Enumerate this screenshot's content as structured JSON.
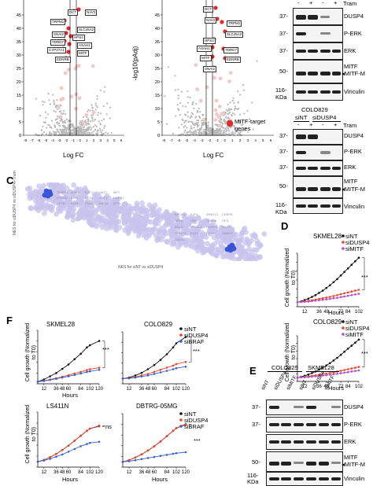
{
  "volcano": {
    "ylabel": "-log10(pAdj)",
    "xlabel": "Log FC",
    "yticks": [
      "0",
      "5",
      "10",
      "15",
      "20",
      "25",
      "30",
      "35",
      "40",
      "45"
    ],
    "xticks": [
      "-8",
      "-7",
      "-6",
      "-5",
      "-4",
      "-3",
      "-2",
      "-1",
      "0",
      "1",
      "2",
      "3",
      "4",
      "5",
      "6"
    ],
    "legend": "MITF-target genes",
    "left_genes": [
      "DCT",
      "NAV2",
      "TRPM1",
      "SLC45A2",
      "SNAI2",
      "HPS4",
      "TDRD7",
      "ASAH1",
      "CYP27A1",
      "MITF",
      "EDNRB"
    ],
    "right_genes": [
      "DCT",
      "NAV2",
      "TRPM1",
      "SLC45A2",
      "HPS4",
      "ASAH1",
      "TDRD7",
      "MITF",
      "EDNRB",
      "SNAI2"
    ]
  },
  "blot_top": {
    "treatment": "Tram",
    "signs": [
      "-",
      "+",
      "-",
      "+"
    ],
    "rows": [
      {
        "mw": "37-",
        "label": "DUSP4"
      },
      {
        "mw": "37-",
        "label": "P-ERK"
      },
      {
        "mw": "37-",
        "label": "ERK"
      },
      {
        "mw": "50-",
        "label": "MITF"
      },
      {
        "mw": "116-",
        "label": "Vinculin"
      }
    ],
    "mitf_m": "◂MITF-M",
    "kda": "KDa"
  },
  "blot_colo": {
    "title": "COLO829",
    "groups": [
      "siNT",
      "siDUSP4"
    ],
    "treatment": "Tram",
    "signs": [
      "-",
      "+",
      "-",
      "+"
    ],
    "rows": [
      {
        "mw": "37-",
        "label": "DUSP4"
      },
      {
        "mw": "37-",
        "label": "P-ERK"
      },
      {
        "mw": "37-",
        "label": "ERK"
      },
      {
        "mw": "50-",
        "label": "MITF"
      },
      {
        "mw": "116-",
        "label": "Vinculin"
      }
    ],
    "mitf_m": "◂MITF-M",
    "kda": "KDa"
  },
  "panelC": {
    "letter": "C",
    "ylabel": "NES for siDUSP4 vs siDUSP4+Tram",
    "xlabel": "NES for siNT vs siDUSP4",
    "top_labels": [
      "TFAP2A",
      "SOX4",
      "E2F7",
      "NA1T",
      "MFY",
      "FOXM1",
      "E2F1",
      "NFYA",
      "BRF1",
      "CREB1",
      "NFYB",
      "ELK1",
      "PAX2",
      "HIF1A",
      "ETS1"
    ],
    "bottom_labels": [
      "BACH1",
      "KLF4",
      "ARNTL2",
      "CEBPB",
      "NFKB",
      "MAF",
      "CEBPA",
      "GFI1",
      "BCL3",
      "NFE2L2",
      "HIVEP2",
      "SOX5",
      "TWIST1",
      "ELK3",
      "CDX2",
      "SMAD3",
      "GATA3"
    ]
  },
  "panelD": {
    "letter": "D",
    "charts": [
      {
        "title": "SKMEL28",
        "legend": [
          "siNT",
          "siDUSP4",
          "siMITF"
        ],
        "xlabel": "Hours",
        "ylabel": "Cell growth (Normalized to T0)",
        "sig": "***"
      },
      {
        "title": "COLO829",
        "legend": [
          "siNT",
          "siDUSP4",
          "siMITF"
        ],
        "xlabel": "Hours",
        "ylabel": "Cell growth (Normalized to T0)",
        "sig": "***"
      }
    ]
  },
  "panelF": {
    "letter": "F",
    "charts": [
      {
        "title": "SKMEL28",
        "sig": [
          "***",
          "***"
        ],
        "legend": [],
        "xlabel": "Hours",
        "ylabel": "Cell growth (Normalized to T0)"
      },
      {
        "title": "COLO829",
        "sig": [
          "***",
          "***"
        ],
        "legend": [
          "siNT",
          "siDUSP4",
          "siBRAF"
        ],
        "xlabel": "Hours",
        "ylabel": ""
      },
      {
        "title": "LS411N",
        "sig": [
          "ns",
          "**"
        ],
        "legend": [],
        "xlabel": "Hours",
        "ylabel": "Cell growth (Normalized to T0)"
      },
      {
        "title": "DBTRG-05MG",
        "sig": [
          "ns",
          "***"
        ],
        "legend": [
          "siNT",
          "siDUSP4",
          "siBRAF"
        ],
        "xlabel": "Hours",
        "ylabel": ""
      }
    ]
  },
  "panelE": {
    "letter": "E",
    "groups": [
      "COLO829",
      "SKMEL28"
    ],
    "lanes": [
      "siNT",
      "siDUSP4",
      "siMITF",
      "siNT",
      "siDUSP4",
      "siMITF"
    ],
    "rows": [
      {
        "mw": "37-",
        "label": "DUSP4"
      },
      {
        "mw": "37-",
        "label": "P-ERK"
      },
      {
        "mw": "",
        "label": "ERK"
      },
      {
        "mw": "50-",
        "label": "MITF"
      },
      {
        "mw": "116-",
        "label": "Vinculin"
      }
    ],
    "mitf_m": "◂MITF-M",
    "kda": "KDa"
  },
  "colors": {
    "siNT": "#111111",
    "siDUSP4": "#e8462a",
    "siMITF": "#b050c8",
    "siBRAF": "#3a5fd0",
    "mitf_dots": "#e02c2c",
    "grey_dots": "#b8b8b8",
    "nes_dots": "#c8c3ec",
    "nes_hi": "#3b55d8"
  },
  "chart_data": [
    {
      "type": "line",
      "title": "SKMEL28",
      "xlabel": "Hours",
      "ylabel": "Cell growth (Normalized to T0)",
      "x": [
        0,
        6,
        12,
        18,
        24,
        30,
        36,
        42,
        48,
        54,
        60,
        66,
        72,
        78,
        84,
        90,
        96,
        102
      ],
      "ylim": [
        0,
        12
      ],
      "series": [
        {
          "name": "siNT",
          "values": [
            1,
            1.2,
            1.5,
            1.8,
            2.2,
            2.6,
            3.1,
            3.6,
            4.2,
            4.8,
            5.5,
            6.2,
            7.0,
            7.8,
            8.6,
            9.4,
            10.2,
            11.0
          ]
        },
        {
          "name": "siDUSP4",
          "values": [
            1,
            1.1,
            1.2,
            1.3,
            1.45,
            1.6,
            1.75,
            1.9,
            2.05,
            2.2,
            2.4,
            2.6,
            2.8,
            3.0,
            3.2,
            3.4,
            3.6,
            3.8
          ]
        },
        {
          "name": "siMITF",
          "values": [
            1,
            1.05,
            1.1,
            1.15,
            1.25,
            1.35,
            1.45,
            1.55,
            1.65,
            1.75,
            1.9,
            2.0,
            2.15,
            2.3,
            2.45,
            2.6,
            2.75,
            2.9
          ]
        }
      ]
    },
    {
      "type": "line",
      "title": "COLO829",
      "xlabel": "Hours",
      "ylabel": "Cell growth (Normalized to T0)",
      "x": [
        0,
        6,
        12,
        18,
        24,
        30,
        36,
        42,
        48,
        54,
        60,
        66,
        72,
        78,
        84,
        90,
        96,
        102
      ],
      "ylim": [
        0,
        12
      ],
      "series": [
        {
          "name": "siNT",
          "values": [
            1,
            1.2,
            1.5,
            1.8,
            2.2,
            2.6,
            3.1,
            3.6,
            4.2,
            4.8,
            5.5,
            6.2,
            7.0,
            7.8,
            8.6,
            9.4,
            10.2,
            11.0
          ]
        },
        {
          "name": "siDUSP4",
          "values": [
            1,
            1.1,
            1.2,
            1.3,
            1.45,
            1.6,
            1.75,
            1.9,
            2.05,
            2.2,
            2.4,
            2.6,
            2.8,
            3.0,
            3.2,
            3.4,
            3.6,
            3.8
          ]
        },
        {
          "name": "siMITF",
          "values": [
            1,
            1.05,
            1.1,
            1.15,
            1.25,
            1.35,
            1.45,
            1.55,
            1.65,
            1.75,
            1.9,
            2.0,
            2.15,
            2.3,
            2.45,
            2.6,
            2.75,
            2.9
          ]
        }
      ]
    },
    {
      "type": "line",
      "title": "SKMEL28",
      "xlabel": "Hours",
      "ylabel": "Cell growth (Normalized to T0)",
      "x": [
        0,
        12,
        24,
        36,
        48,
        60,
        72,
        84,
        96,
        102,
        120
      ],
      "ylim": [
        0,
        25
      ],
      "series": [
        {
          "name": "siNT",
          "values": [
            1,
            2,
            3.5,
            5,
            7,
            9,
            11.5,
            14,
            17,
            18,
            20
          ]
        },
        {
          "name": "siDUSP4",
          "values": [
            1,
            1.4,
            2,
            2.6,
            3.3,
            4,
            4.8,
            5.6,
            6.4,
            6.8,
            7.5
          ]
        },
        {
          "name": "siBRAF",
          "values": [
            1,
            1.3,
            1.8,
            2.3,
            2.9,
            3.5,
            4.1,
            4.8,
            5.5,
            5.8,
            6.5
          ]
        }
      ]
    },
    {
      "type": "line",
      "title": "COLO829",
      "xlabel": "Hours",
      "ylabel": "Cell growth (Normalized to T0)",
      "x": [
        0,
        12,
        24,
        36,
        48,
        60,
        72,
        84,
        96,
        102,
        120
      ],
      "ylim": [
        0,
        10
      ],
      "series": [
        {
          "name": "siNT",
          "values": [
            1,
            1.2,
            1.6,
            2.1,
            2.8,
            3.6,
            4.6,
            5.7,
            7,
            7.8,
            9
          ]
        },
        {
          "name": "siDUSP4",
          "values": [
            1,
            1.1,
            1.3,
            1.6,
            1.9,
            2.3,
            2.7,
            3.1,
            3.5,
            3.8,
            4.2
          ]
        },
        {
          "name": "siBRAF",
          "values": [
            1,
            1.05,
            1.2,
            1.4,
            1.6,
            1.9,
            2.2,
            2.5,
            2.8,
            3.0,
            3.3
          ]
        }
      ]
    },
    {
      "type": "line",
      "title": "LS411N",
      "xlabel": "Hours",
      "ylabel": "Cell growth (Normalized to T0)",
      "x": [
        0,
        12,
        24,
        36,
        48,
        60,
        72,
        84,
        96,
        102,
        120
      ],
      "ylim": [
        0,
        10
      ],
      "series": [
        {
          "name": "siNT",
          "values": [
            1,
            1.3,
            1.8,
            2.4,
            3.1,
            3.9,
            4.8,
            5.7,
            6.6,
            7.0,
            7.5
          ]
        },
        {
          "name": "siDUSP4",
          "values": [
            1,
            1.3,
            1.8,
            2.4,
            3.1,
            3.9,
            4.8,
            5.7,
            6.6,
            7.0,
            7.4
          ]
        },
        {
          "name": "siBRAF",
          "values": [
            1,
            1.2,
            1.5,
            1.9,
            2.3,
            2.8,
            3.3,
            3.8,
            4.2,
            4.4,
            4.6
          ]
        }
      ]
    },
    {
      "type": "line",
      "title": "DBTRG-05MG",
      "xlabel": "Hours",
      "ylabel": "Cell growth (Normalized to T0)",
      "x": [
        0,
        12,
        24,
        36,
        48,
        60,
        72,
        84,
        96,
        102,
        120
      ],
      "ylim": [
        0,
        10
      ],
      "series": [
        {
          "name": "siNT",
          "values": [
            1,
            1.3,
            1.8,
            2.4,
            3.1,
            3.9,
            4.8,
            5.8,
            6.8,
            7.3,
            8
          ]
        },
        {
          "name": "siDUSP4",
          "values": [
            1,
            1.3,
            1.8,
            2.4,
            3.1,
            3.9,
            4.8,
            5.8,
            6.8,
            7.3,
            7.9
          ]
        },
        {
          "name": "siBRAF",
          "values": [
            1,
            1.1,
            1.3,
            1.5,
            1.7,
            1.9,
            2.1,
            2.3,
            2.5,
            2.6,
            2.8
          ]
        }
      ]
    }
  ]
}
